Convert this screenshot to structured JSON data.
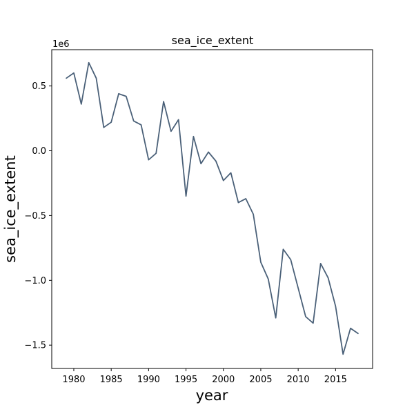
{
  "chart_data": {
    "type": "line",
    "title": "sea_ice_extent",
    "xlabel": "year",
    "ylabel": "sea_ice_extent",
    "y_offset_label": "1e6",
    "xlim": [
      1977.05,
      2019.95
    ],
    "ylim": [
      -1.68,
      0.78
    ],
    "x_ticks": [
      1980,
      1985,
      1990,
      1995,
      2000,
      2005,
      2010,
      2015
    ],
    "y_ticks": [
      -1.5,
      -1.0,
      -0.5,
      0.0,
      0.5
    ],
    "y_tick_labels": [
      "−1.5",
      "−1.0",
      "−0.5",
      "0.0",
      "0.5"
    ],
    "grid": false,
    "line_color": "#4a6078",
    "series": [
      {
        "x": [
          1979,
          1980,
          1981,
          1982,
          1983,
          1984,
          1985,
          1986,
          1987,
          1988,
          1989,
          1990,
          1991,
          1992,
          1993,
          1994,
          1995,
          1996,
          1997,
          1998,
          1999,
          2000,
          2001,
          2002,
          2003,
          2004,
          2005,
          2006,
          2007,
          2008,
          2009,
          2010,
          2011,
          2012,
          2013,
          2014,
          2015,
          2016,
          2017,
          2018
        ],
        "values": [
          0.56,
          0.6,
          0.36,
          0.68,
          0.56,
          0.18,
          0.22,
          0.44,
          0.42,
          0.23,
          0.2,
          -0.07,
          -0.02,
          0.38,
          0.15,
          0.24,
          -0.35,
          0.11,
          -0.1,
          -0.01,
          -0.08,
          -0.23,
          -0.17,
          -0.4,
          -0.37,
          -0.49,
          -0.86,
          -0.99,
          -1.29,
          -0.76,
          -0.84,
          -1.06,
          -1.28,
          -1.33,
          -0.87,
          -0.98,
          -1.2,
          -1.57,
          -1.37,
          -1.41
        ]
      }
    ]
  }
}
